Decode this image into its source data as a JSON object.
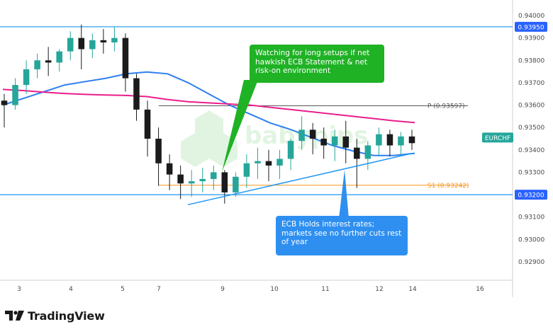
{
  "chart_data": {
    "type": "candlestick",
    "symbol": "EURCHF",
    "y_axis": {
      "ticks": [
        "0.94000",
        "0.93900",
        "0.93800",
        "0.93700",
        "0.93600",
        "0.93500",
        "0.93400",
        "0.93300",
        "0.93100",
        "0.93000",
        "0.92900"
      ],
      "range": [
        0.928,
        0.9406
      ],
      "highlighted_labels": [
        {
          "text": "0.93950",
          "value": 0.9395,
          "color": "#2962ff"
        },
        {
          "text": "0.93200",
          "value": 0.932,
          "color": "#2962ff"
        },
        {
          "text": "EURCHF",
          "value": 0.93455,
          "color": "#26a69a"
        }
      ]
    },
    "x_axis": {
      "ticks": [
        "3",
        "4",
        "5",
        "7",
        "9",
        "10",
        "11",
        "12",
        "14",
        "16"
      ]
    },
    "horizontal_lines": [
      {
        "value": 0.9395,
        "color": "#2196f3"
      },
      {
        "value": 0.932,
        "color": "#2196f3"
      }
    ],
    "pivot_levels": [
      {
        "label": "P (0.93597)",
        "value": 0.93597,
        "color": "#555555"
      },
      {
        "label": "S1 (0.93242)",
        "value": 0.93242,
        "color": "#f7941d"
      }
    ],
    "trendline": {
      "color": "#2196f3",
      "from_value": 0.93155,
      "to_value": 0.93385
    },
    "moving_averages": [
      {
        "color": "#2e7ff0",
        "values": [
          0.936,
          0.9363,
          0.9366,
          0.9369,
          0.93705,
          0.9372,
          0.9374,
          0.93748,
          0.9374,
          0.937,
          0.9365,
          0.936,
          0.9356,
          0.9352,
          0.9349,
          0.93455,
          0.9342,
          0.93395,
          0.93375,
          0.93375,
          0.93385
        ]
      },
      {
        "color": "#e91e8c",
        "values": [
          0.9367,
          0.93665,
          0.93658,
          0.93652,
          0.93648,
          0.93645,
          0.93643,
          0.93638,
          0.93625,
          0.93615,
          0.9361,
          0.93605,
          0.936,
          0.9359,
          0.9358,
          0.9357,
          0.9356,
          0.9355,
          0.9354,
          0.9353,
          0.93522
        ]
      }
    ],
    "candles": [
      {
        "o": 0.9362,
        "h": 0.9365,
        "c": 0.936,
        "l": 0.935
      },
      {
        "o": 0.936,
        "h": 0.9372,
        "c": 0.9369,
        "l": 0.9358
      },
      {
        "o": 0.9369,
        "h": 0.938,
        "c": 0.9376,
        "l": 0.9365
      },
      {
        "o": 0.9376,
        "h": 0.9383,
        "c": 0.938,
        "l": 0.9372
      },
      {
        "o": 0.938,
        "h": 0.9386,
        "c": 0.9379,
        "l": 0.9373
      },
      {
        "o": 0.9379,
        "h": 0.9385,
        "c": 0.9384,
        "l": 0.9375
      },
      {
        "o": 0.9384,
        "h": 0.9393,
        "c": 0.939,
        "l": 0.938
      },
      {
        "o": 0.939,
        "h": 0.9396,
        "c": 0.9385,
        "l": 0.9376
      },
      {
        "o": 0.9385,
        "h": 0.9392,
        "c": 0.9389,
        "l": 0.9381
      },
      {
        "o": 0.9389,
        "h": 0.9394,
        "c": 0.9388,
        "l": 0.9383
      },
      {
        "o": 0.9388,
        "h": 0.9395,
        "c": 0.939,
        "l": 0.9384
      },
      {
        "o": 0.939,
        "h": 0.9392,
        "c": 0.9372,
        "l": 0.9366
      },
      {
        "o": 0.9372,
        "h": 0.9374,
        "c": 0.9358,
        "l": 0.9353
      },
      {
        "o": 0.9358,
        "h": 0.9362,
        "c": 0.9345,
        "l": 0.9337
      },
      {
        "o": 0.9345,
        "h": 0.935,
        "c": 0.9334,
        "l": 0.9324
      },
      {
        "o": 0.9334,
        "h": 0.9338,
        "c": 0.9329,
        "l": 0.9322
      },
      {
        "o": 0.9329,
        "h": 0.9333,
        "c": 0.9325,
        "l": 0.9318
      },
      {
        "o": 0.9325,
        "h": 0.9331,
        "c": 0.9326,
        "l": 0.9319
      },
      {
        "o": 0.9326,
        "h": 0.9332,
        "c": 0.9327,
        "l": 0.9321
      },
      {
        "o": 0.9327,
        "h": 0.9333,
        "c": 0.933,
        "l": 0.9322
      },
      {
        "o": 0.933,
        "h": 0.9331,
        "c": 0.9321,
        "l": 0.9316
      },
      {
        "o": 0.9321,
        "h": 0.933,
        "c": 0.9328,
        "l": 0.9319
      },
      {
        "o": 0.9328,
        "h": 0.9338,
        "c": 0.9334,
        "l": 0.9323
      },
      {
        "o": 0.9334,
        "h": 0.9341,
        "c": 0.9335,
        "l": 0.9327
      },
      {
        "o": 0.9335,
        "h": 0.934,
        "c": 0.9333,
        "l": 0.9326
      },
      {
        "o": 0.9333,
        "h": 0.934,
        "c": 0.9336,
        "l": 0.9327
      },
      {
        "o": 0.9336,
        "h": 0.9345,
        "c": 0.9344,
        "l": 0.9331
      },
      {
        "o": 0.9344,
        "h": 0.9355,
        "c": 0.9349,
        "l": 0.934
      },
      {
        "o": 0.9349,
        "h": 0.9352,
        "c": 0.9345,
        "l": 0.9338
      },
      {
        "o": 0.9345,
        "h": 0.935,
        "c": 0.9342,
        "l": 0.9336
      },
      {
        "o": 0.9342,
        "h": 0.9349,
        "c": 0.9346,
        "l": 0.9335
      },
      {
        "o": 0.9346,
        "h": 0.9353,
        "c": 0.9341,
        "l": 0.9334
      },
      {
        "o": 0.9341,
        "h": 0.9345,
        "c": 0.9336,
        "l": 0.9323
      },
      {
        "o": 0.9336,
        "h": 0.9344,
        "c": 0.9342,
        "l": 0.9331
      },
      {
        "o": 0.9342,
        "h": 0.935,
        "c": 0.9347,
        "l": 0.9337
      },
      {
        "o": 0.9347,
        "h": 0.9349,
        "c": 0.9342,
        "l": 0.9337
      },
      {
        "o": 0.9342,
        "h": 0.9348,
        "c": 0.9346,
        "l": 0.9338
      },
      {
        "o": 0.9346,
        "h": 0.9349,
        "c": 0.9343,
        "l": 0.934
      }
    ]
  },
  "callouts": {
    "green": "Watching for long setups if net hawkish ECB Statement & net risk-on environment",
    "blue": "ECB Holds interest rates; markets see no further cuts rest of year"
  },
  "watermark": "babypips",
  "branding": {
    "name": "TradingView"
  },
  "colors": {
    "bull": "#26a69a",
    "bear": "#1b1b1b",
    "axis_label": "#2962ff",
    "symbol_label": "#26a69a"
  }
}
